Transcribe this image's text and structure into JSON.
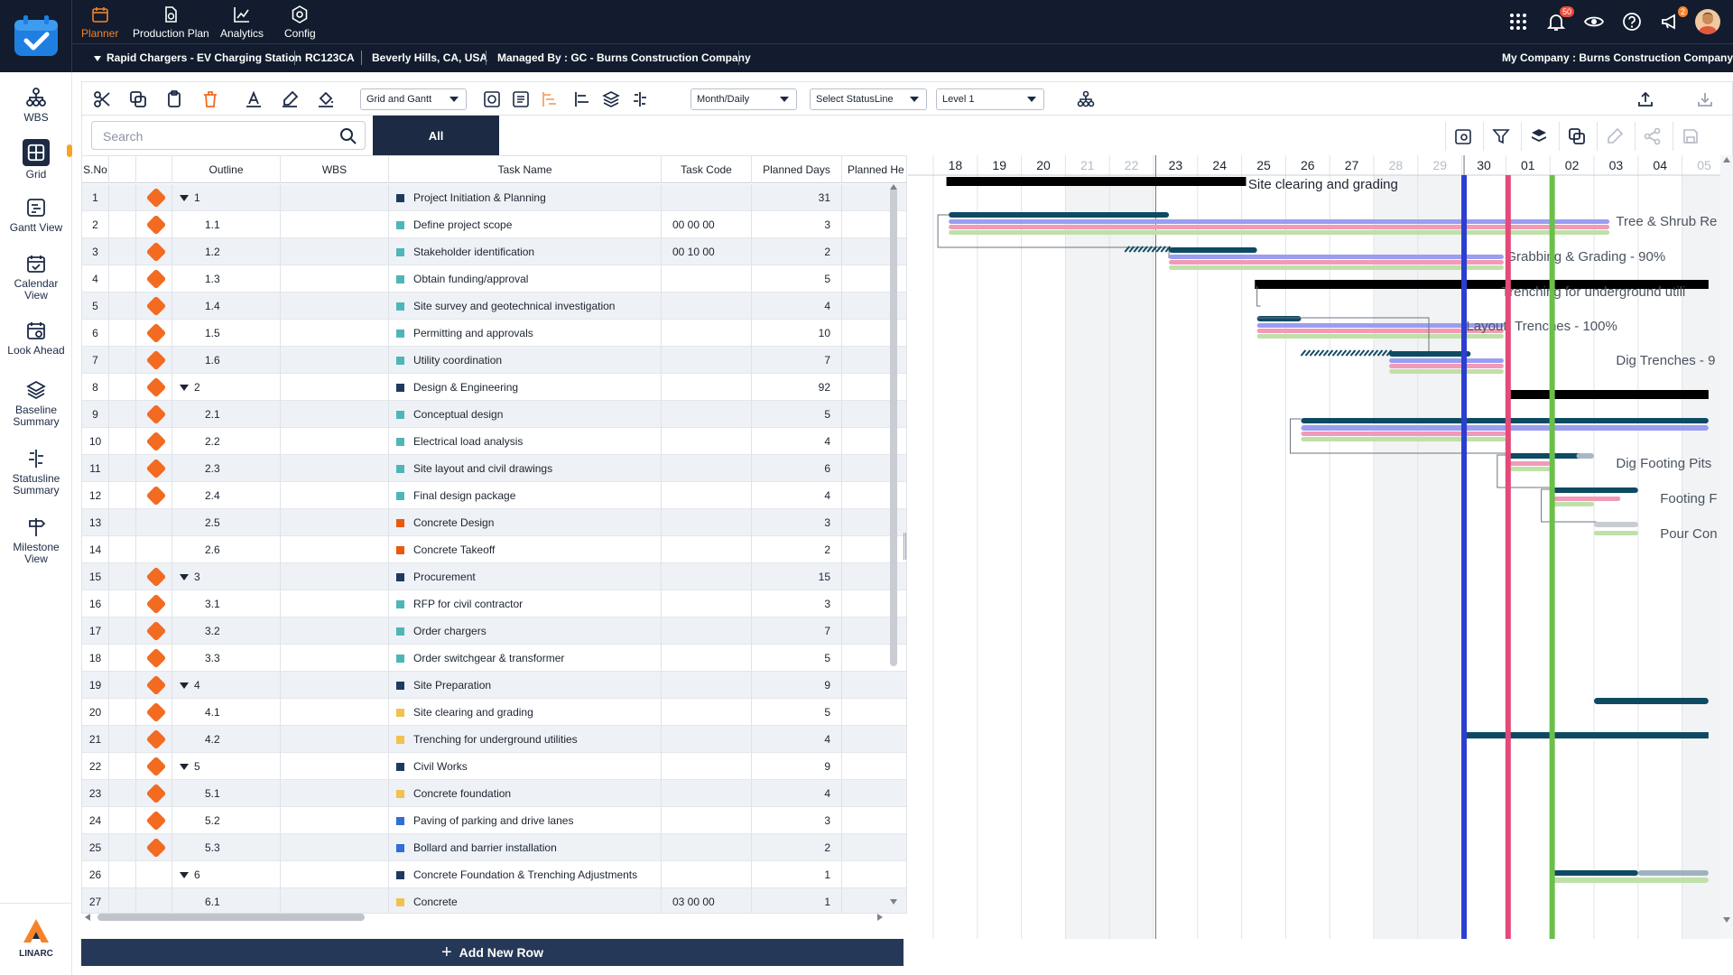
{
  "topnav": {
    "items": [
      {
        "label": "Planner",
        "icon": "calendar-icon",
        "active": true
      },
      {
        "label": "Production Plan",
        "icon": "document-icon"
      },
      {
        "label": "Analytics",
        "icon": "chart-icon"
      },
      {
        "label": "Config",
        "icon": "gear-icon"
      }
    ],
    "notifications_badge": "50",
    "announcements_badge": "2"
  },
  "project": {
    "name": "Rapid Chargers - EV Charging Station",
    "code": "RC123CA",
    "location": "Beverly Hills, CA, USA",
    "managed_by": "Managed By : GC - Burns Construction Company",
    "company": "My Company : Burns Construction Company"
  },
  "leftnav": [
    {
      "label": "WBS",
      "icon": "hierarchy-icon"
    },
    {
      "label": "Grid",
      "icon": "grid-icon",
      "active": true
    },
    {
      "label": "Gantt View",
      "icon": "gantt-icon"
    },
    {
      "label": "Calendar View",
      "icon": "calendar-check-icon"
    },
    {
      "label": "Look Ahead",
      "icon": "look-ahead-icon"
    },
    {
      "label": "Baseline Summary",
      "icon": "layers-icon"
    },
    {
      "label": "Statusline Summary",
      "icon": "statusline-icon"
    },
    {
      "label": "Milestone View",
      "icon": "signpost-icon"
    }
  ],
  "brand": {
    "name": "LINARC"
  },
  "toolbar": {
    "view_select": "Grid and Gantt",
    "timescale_select": "Month/Daily",
    "statusline_select": "Select StatusLine",
    "level_select": "Level 1"
  },
  "search": {
    "placeholder": "Search"
  },
  "filter_tab": "All",
  "grid": {
    "columns": [
      "S.No",
      "",
      "",
      "Outline",
      "WBS",
      "Task Name",
      "Task Code",
      "Planned Days",
      "Planned He"
    ],
    "rows": [
      {
        "sno": "1",
        "milestone": true,
        "expand": true,
        "outline": "1",
        "task": "Project Initiation & Planning",
        "color": "#1f3a5f",
        "code": "",
        "days": "31"
      },
      {
        "sno": "2",
        "milestone": true,
        "outline": "1.1",
        "task": "Define project scope",
        "color": "#4fb6b8",
        "code": "00 00 00",
        "days": "3"
      },
      {
        "sno": "3",
        "milestone": true,
        "outline": "1.2",
        "task": "Stakeholder identification",
        "color": "#4fb6b8",
        "code": "00 10 00",
        "days": "2"
      },
      {
        "sno": "4",
        "milestone": true,
        "outline": "1.3",
        "task": "Obtain funding/approval",
        "color": "#4fb6b8",
        "code": "",
        "days": "5"
      },
      {
        "sno": "5",
        "milestone": true,
        "outline": "1.4",
        "task": "Site survey and geotechnical investigation",
        "color": "#4fb6b8",
        "code": "",
        "days": "4"
      },
      {
        "sno": "6",
        "milestone": true,
        "outline": "1.5",
        "task": "Permitting and approvals",
        "color": "#4fb6b8",
        "code": "",
        "days": "10"
      },
      {
        "sno": "7",
        "milestone": true,
        "outline": "1.6",
        "task": "Utility coordination",
        "color": "#4fb6b8",
        "code": "",
        "days": "7"
      },
      {
        "sno": "8",
        "milestone": true,
        "expand": true,
        "outline": "2",
        "task": "Design & Engineering",
        "color": "#1f3a5f",
        "code": "",
        "days": "92"
      },
      {
        "sno": "9",
        "milestone": true,
        "outline": "2.1",
        "task": "Conceptual design",
        "color": "#4fb6b8",
        "code": "",
        "days": "5"
      },
      {
        "sno": "10",
        "milestone": true,
        "outline": "2.2",
        "task": "Electrical load analysis",
        "color": "#4fb6b8",
        "code": "",
        "days": "4"
      },
      {
        "sno": "11",
        "milestone": true,
        "outline": "2.3",
        "task": "Site layout and civil drawings",
        "color": "#4fb6b8",
        "code": "",
        "days": "6"
      },
      {
        "sno": "12",
        "milestone": true,
        "outline": "2.4",
        "task": "Final design package",
        "color": "#4fb6b8",
        "code": "",
        "days": "4"
      },
      {
        "sno": "13",
        "milestone": false,
        "outline": "2.5",
        "task": "Concrete Design",
        "color": "#e8590c",
        "code": "",
        "days": "3"
      },
      {
        "sno": "14",
        "milestone": false,
        "outline": "2.6",
        "task": "Concrete Takeoff",
        "color": "#e8590c",
        "code": "",
        "days": "2"
      },
      {
        "sno": "15",
        "milestone": true,
        "expand": true,
        "outline": "3",
        "task": "Procurement",
        "color": "#1f3a5f",
        "code": "",
        "days": "15"
      },
      {
        "sno": "16",
        "milestone": true,
        "outline": "3.1",
        "task": "RFP for civil contractor",
        "color": "#4fb6b8",
        "code": "",
        "days": "3"
      },
      {
        "sno": "17",
        "milestone": true,
        "outline": "3.2",
        "task": "Order chargers",
        "color": "#4fb6b8",
        "code": "",
        "days": "7"
      },
      {
        "sno": "18",
        "milestone": true,
        "outline": "3.3",
        "task": "Order switchgear & transformer",
        "color": "#4fb6b8",
        "code": "",
        "days": "5"
      },
      {
        "sno": "19",
        "milestone": true,
        "expand": true,
        "outline": "4",
        "task": "Site Preparation",
        "color": "#1f3a5f",
        "code": "",
        "days": "9"
      },
      {
        "sno": "20",
        "milestone": true,
        "outline": "4.1",
        "task": "Site clearing and grading",
        "color": "#f2c14e",
        "code": "",
        "days": "5"
      },
      {
        "sno": "21",
        "milestone": true,
        "outline": "4.2",
        "task": "Trenching for underground utilities",
        "color": "#f2c14e",
        "code": "",
        "days": "4"
      },
      {
        "sno": "22",
        "milestone": true,
        "expand": true,
        "outline": "5",
        "task": "Civil Works",
        "color": "#1f3a5f",
        "code": "",
        "days": "9"
      },
      {
        "sno": "23",
        "milestone": true,
        "outline": "5.1",
        "task": "Concrete foundation",
        "color": "#f2c14e",
        "code": "",
        "days": "4"
      },
      {
        "sno": "24",
        "milestone": true,
        "outline": "5.2",
        "task": "Paving of parking and drive lanes",
        "color": "#2f6fd6",
        "code": "",
        "days": "3"
      },
      {
        "sno": "25",
        "milestone": true,
        "outline": "5.3",
        "task": "Bollard and barrier installation",
        "color": "#2f6fd6",
        "code": "",
        "days": "2"
      },
      {
        "sno": "26",
        "milestone": false,
        "expand": true,
        "outline": "6",
        "task": "Concrete Foundation & Trenching Adjustments",
        "color": "#1f3a5f",
        "code": "",
        "days": "1"
      },
      {
        "sno": "27",
        "milestone": false,
        "outline": "6.1",
        "task": "Concrete",
        "color": "#f2c14e",
        "code": "03 00 00",
        "days": "1"
      }
    ]
  },
  "add_row": "Add New Row",
  "gantt": {
    "days": [
      {
        "d": "18",
        "weekend": false
      },
      {
        "d": "19",
        "weekend": false
      },
      {
        "d": "20",
        "weekend": false
      },
      {
        "d": "21",
        "weekend": true
      },
      {
        "d": "22",
        "weekend": true
      },
      {
        "d": "23",
        "weekend": false
      },
      {
        "d": "24",
        "weekend": false
      },
      {
        "d": "25",
        "weekend": false
      },
      {
        "d": "26",
        "weekend": false
      },
      {
        "d": "27",
        "weekend": false
      },
      {
        "d": "28",
        "weekend": true
      },
      {
        "d": "29",
        "weekend": true
      },
      {
        "d": "30",
        "weekend": false
      },
      {
        "d": "01",
        "weekend": false
      },
      {
        "d": "02",
        "weekend": false
      },
      {
        "d": "03",
        "weekend": false
      },
      {
        "d": "04",
        "weekend": false
      },
      {
        "d": "05",
        "weekend": true
      }
    ],
    "labels": {
      "site_clearing": "Site clearing and grading",
      "tree_shrub": "Tree & Shrub Re",
      "grubbing": "Grabbing & Grading - 90%",
      "trenching": "Trenching for underground utili",
      "layout": "Layout",
      "trenches": "Trenches - 100%",
      "dig_trenches": "Dig Trenches - 9",
      "dig_footing": "Dig Footing Pits",
      "footing": "Footing F",
      "pour": "Pour Con"
    },
    "colors": {
      "blue_line": "#2b3fd1",
      "pink_line": "#e24a7a",
      "green_line": "#6bbf4a",
      "navy_bar": "#0f4a63",
      "violet_bar": "#9a9ef0",
      "pink_bar": "#f29ab8",
      "green_bar": "#bfe0a8"
    }
  }
}
